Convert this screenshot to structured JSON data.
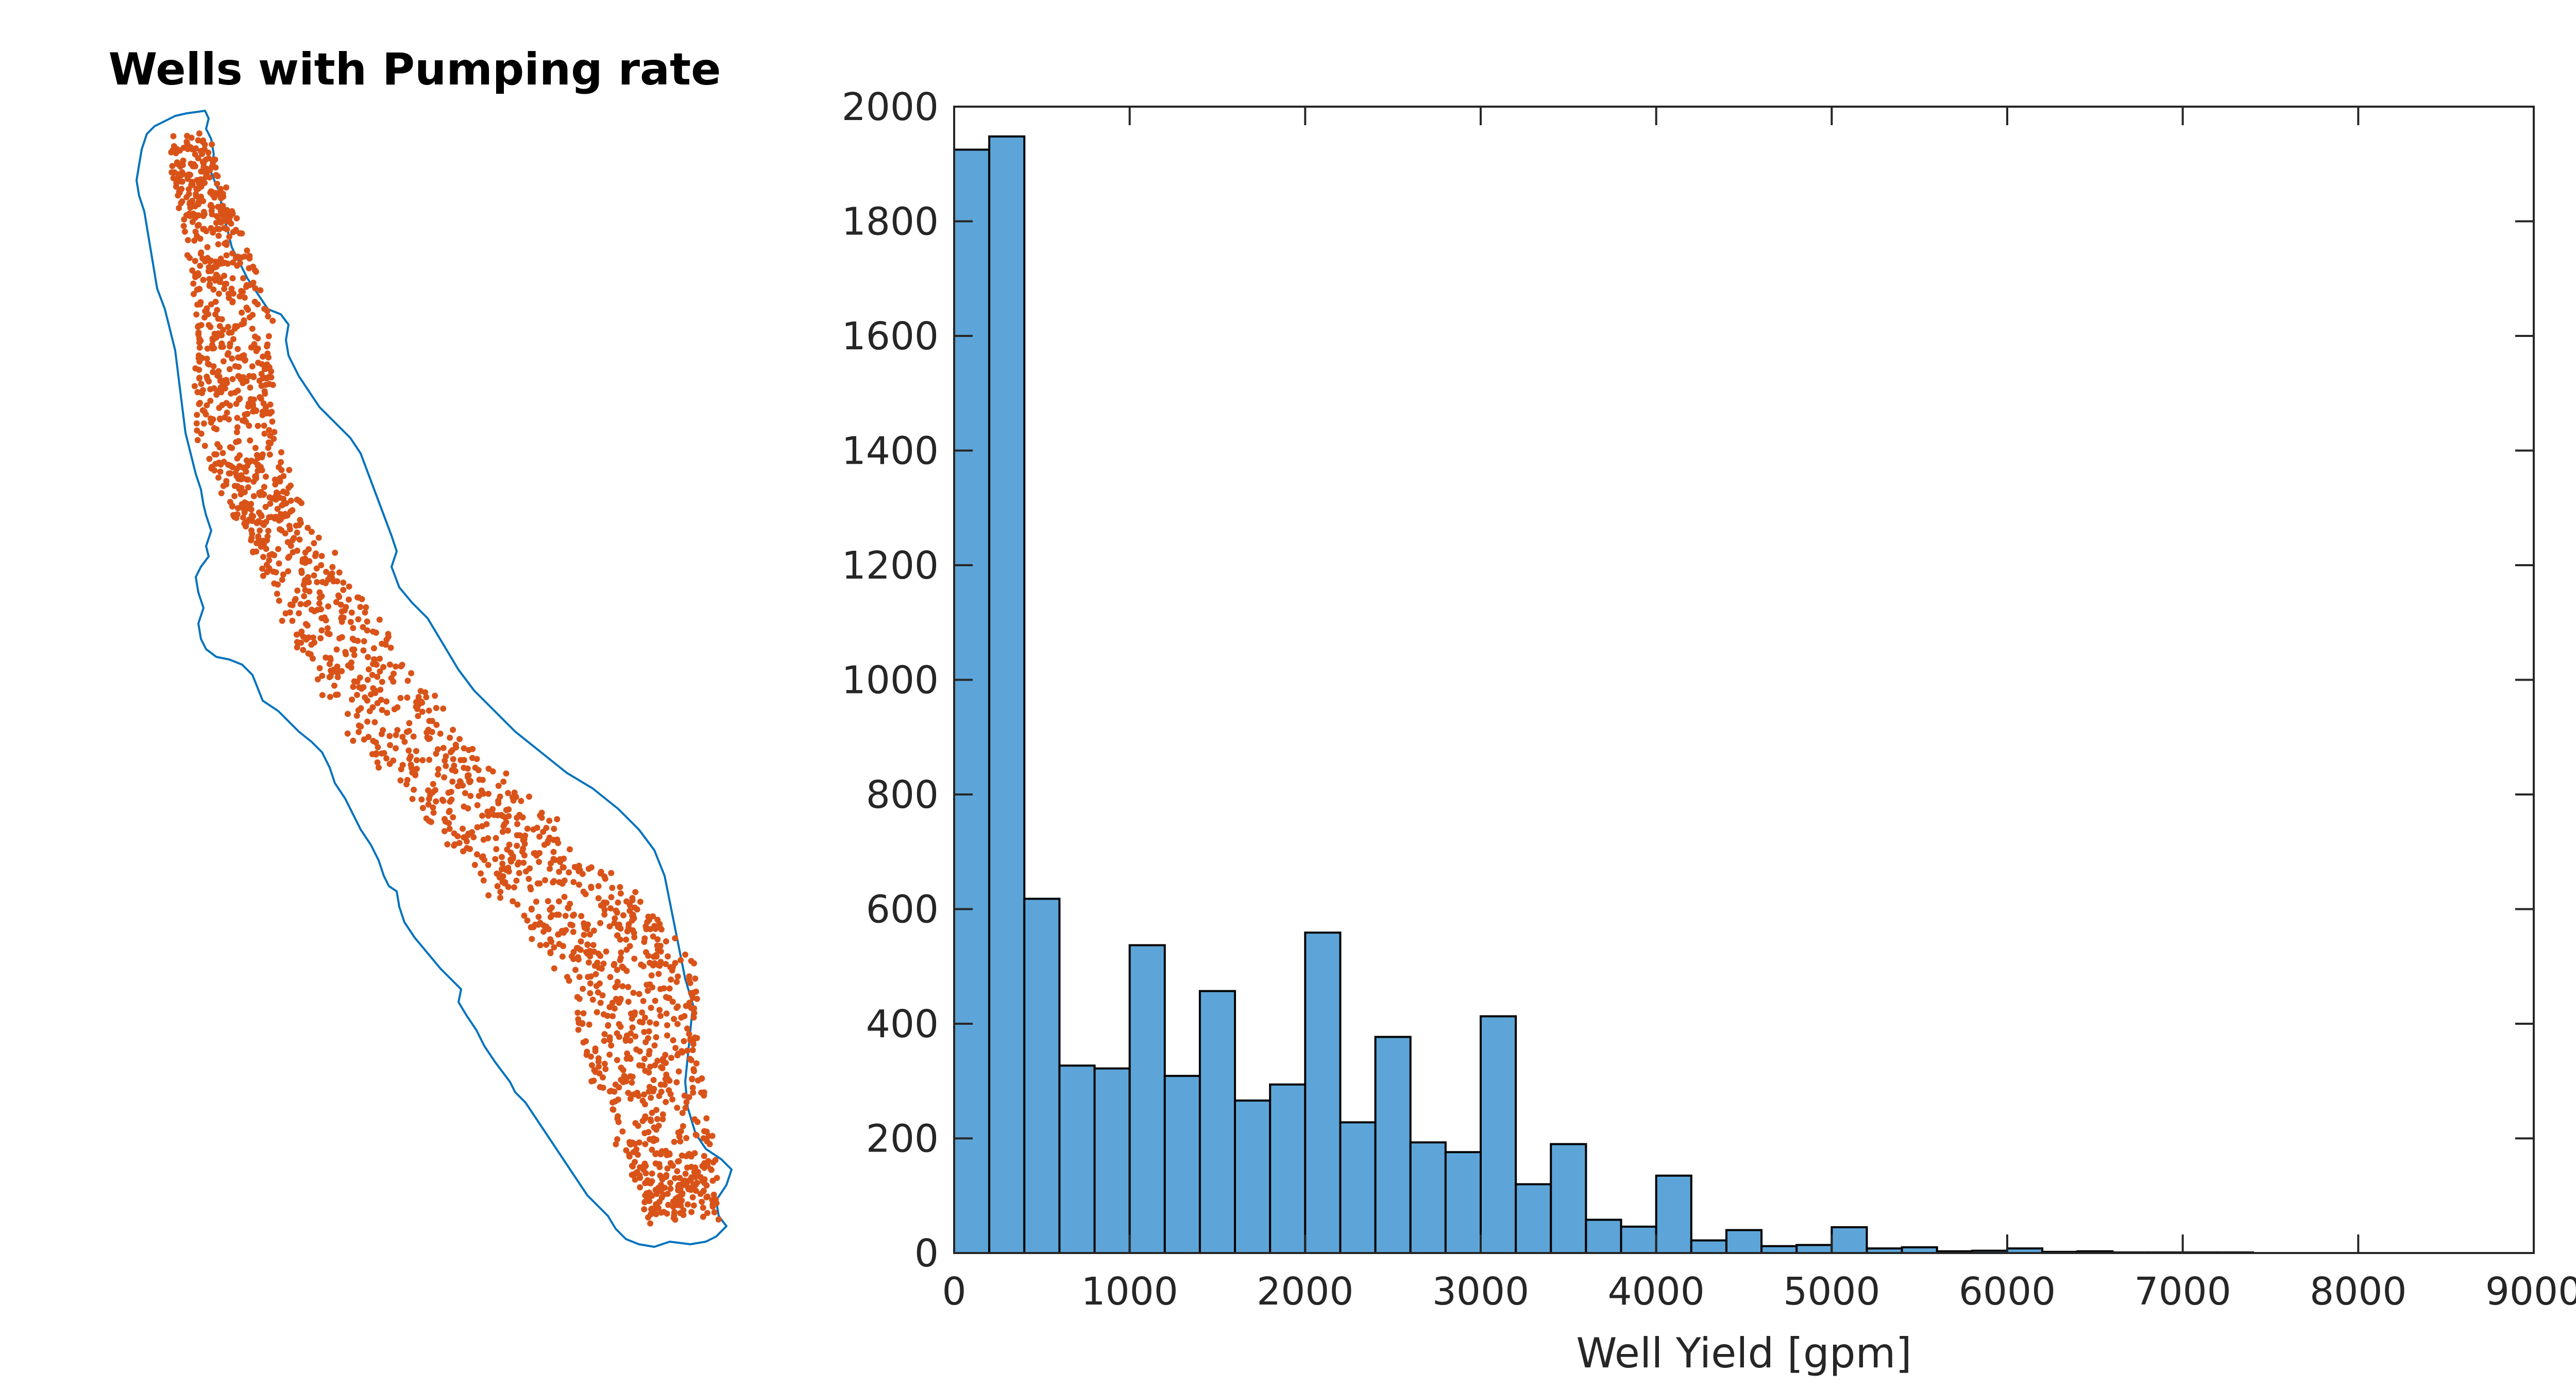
{
  "map": {
    "title": "Wells with Pumping rate",
    "outline_color": "#0072BD",
    "point_color": "#D95319"
  },
  "chart_data": {
    "type": "histogram",
    "title": "",
    "xlabel": "Well Yield  [gpm]",
    "ylabel": "",
    "xlim": [
      0,
      9000
    ],
    "ylim": [
      0,
      2000
    ],
    "xticks": [
      0,
      1000,
      2000,
      3000,
      4000,
      5000,
      6000,
      7000,
      8000,
      9000
    ],
    "yticks": [
      0,
      200,
      400,
      600,
      800,
      1000,
      1200,
      1400,
      1600,
      1800,
      2000
    ],
    "bin_width": 200,
    "bin_starts": [
      0,
      200,
      400,
      600,
      800,
      1000,
      1200,
      1400,
      1600,
      1800,
      2000,
      2200,
      2400,
      2600,
      2800,
      3000,
      3200,
      3400,
      3600,
      3800,
      4000,
      4200,
      4400,
      4600,
      4800,
      5000,
      5200,
      5400,
      5600,
      5800,
      6000,
      6200,
      6400,
      6600,
      6800,
      7000,
      7200
    ],
    "values": [
      1925,
      1948,
      618,
      327,
      322,
      537,
      309,
      457,
      266,
      294,
      559,
      228,
      377,
      193,
      176,
      413,
      120,
      190,
      58,
      46,
      135,
      22,
      40,
      12,
      14,
      45,
      8,
      10,
      3,
      4,
      8,
      2,
      3,
      1,
      1,
      1,
      1
    ],
    "bar_color": "#5DA5D8",
    "edge_color": "#000000",
    "grid": false
  }
}
